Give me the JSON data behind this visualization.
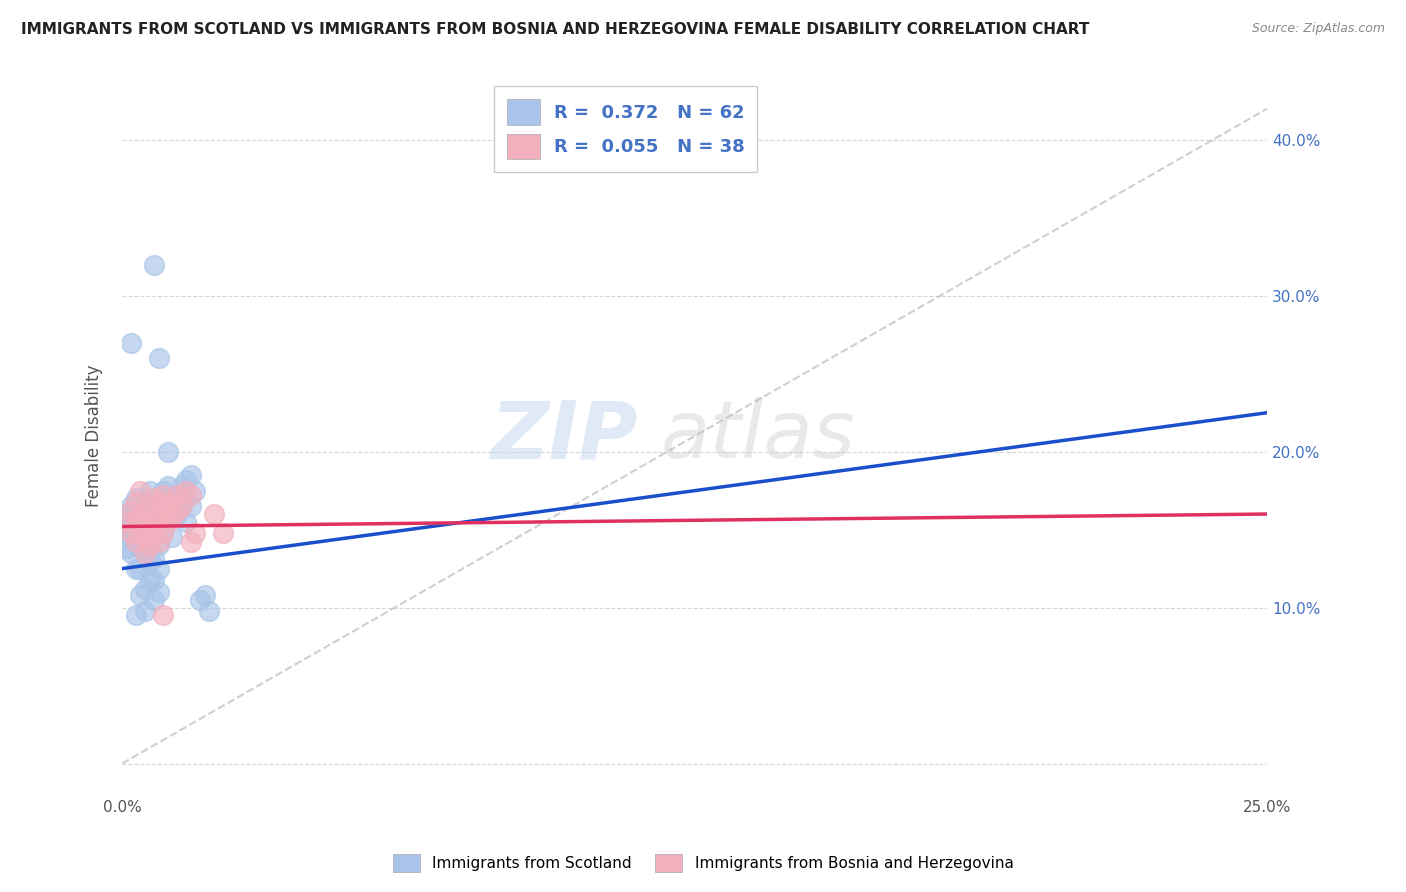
{
  "title": "IMMIGRANTS FROM SCOTLAND VS IMMIGRANTS FROM BOSNIA AND HERZEGOVINA FEMALE DISABILITY CORRELATION CHART",
  "source": "Source: ZipAtlas.com",
  "ylabel": "Female Disability",
  "xlim": [
    0.0,
    0.25
  ],
  "ylim": [
    -0.02,
    0.44
  ],
  "xticks": [
    0.0,
    0.05,
    0.1,
    0.15,
    0.2,
    0.25
  ],
  "yticks": [
    0.0,
    0.1,
    0.2,
    0.3,
    0.4
  ],
  "grid_color": "#cccccc",
  "background_color": "#ffffff",
  "scatter_blue_color": "#a8c4e8",
  "scatter_pink_color": "#f2b0be",
  "line_blue_color": "#1a4fcc",
  "line_pink_color": "#e03060",
  "diag_line_color": "#bbbbbb",
  "R_blue": 0.372,
  "N_blue": 62,
  "R_pink": 0.055,
  "N_pink": 38,
  "legend_label_blue": "Immigrants from Scotland",
  "legend_label_pink": "Immigrants from Bosnia and Herzegovina",
  "watermark": "ZIPatlas",
  "blue_line": [
    0.0,
    0.125,
    0.25,
    0.225
  ],
  "pink_line": [
    0.0,
    0.152,
    0.25,
    0.16
  ],
  "blue_points": [
    [
      0.001,
      0.152
    ],
    [
      0.001,
      0.145
    ],
    [
      0.001,
      0.16
    ],
    [
      0.001,
      0.138
    ],
    [
      0.002,
      0.148
    ],
    [
      0.002,
      0.155
    ],
    [
      0.002,
      0.165
    ],
    [
      0.002,
      0.135
    ],
    [
      0.002,
      0.27
    ],
    [
      0.003,
      0.142
    ],
    [
      0.003,
      0.158
    ],
    [
      0.003,
      0.125
    ],
    [
      0.003,
      0.17
    ],
    [
      0.003,
      0.095
    ],
    [
      0.004,
      0.148
    ],
    [
      0.004,
      0.138
    ],
    [
      0.004,
      0.162
    ],
    [
      0.004,
      0.108
    ],
    [
      0.004,
      0.125
    ],
    [
      0.005,
      0.152
    ],
    [
      0.005,
      0.14
    ],
    [
      0.005,
      0.168
    ],
    [
      0.005,
      0.112
    ],
    [
      0.005,
      0.098
    ],
    [
      0.006,
      0.155
    ],
    [
      0.006,
      0.143
    ],
    [
      0.006,
      0.175
    ],
    [
      0.006,
      0.118
    ],
    [
      0.006,
      0.13
    ],
    [
      0.007,
      0.32
    ],
    [
      0.007,
      0.162
    ],
    [
      0.007,
      0.148
    ],
    [
      0.007,
      0.132
    ],
    [
      0.007,
      0.118
    ],
    [
      0.007,
      0.105
    ],
    [
      0.008,
      0.26
    ],
    [
      0.008,
      0.168
    ],
    [
      0.008,
      0.155
    ],
    [
      0.008,
      0.14
    ],
    [
      0.008,
      0.125
    ],
    [
      0.008,
      0.11
    ],
    [
      0.009,
      0.175
    ],
    [
      0.009,
      0.162
    ],
    [
      0.009,
      0.148
    ],
    [
      0.01,
      0.178
    ],
    [
      0.01,
      0.165
    ],
    [
      0.01,
      0.2
    ],
    [
      0.011,
      0.17
    ],
    [
      0.011,
      0.158
    ],
    [
      0.011,
      0.145
    ],
    [
      0.012,
      0.172
    ],
    [
      0.012,
      0.16
    ],
    [
      0.013,
      0.178
    ],
    [
      0.013,
      0.165
    ],
    [
      0.014,
      0.182
    ],
    [
      0.014,
      0.155
    ],
    [
      0.015,
      0.185
    ],
    [
      0.015,
      0.165
    ],
    [
      0.016,
      0.175
    ],
    [
      0.017,
      0.105
    ],
    [
      0.018,
      0.108
    ],
    [
      0.019,
      0.098
    ]
  ],
  "pink_points": [
    [
      0.001,
      0.155
    ],
    [
      0.002,
      0.148
    ],
    [
      0.002,
      0.162
    ],
    [
      0.003,
      0.155
    ],
    [
      0.003,
      0.142
    ],
    [
      0.003,
      0.168
    ],
    [
      0.004,
      0.158
    ],
    [
      0.004,
      0.148
    ],
    [
      0.004,
      0.175
    ],
    [
      0.005,
      0.162
    ],
    [
      0.005,
      0.145
    ],
    [
      0.005,
      0.135
    ],
    [
      0.006,
      0.165
    ],
    [
      0.006,
      0.152
    ],
    [
      0.006,
      0.14
    ],
    [
      0.007,
      0.17
    ],
    [
      0.007,
      0.158
    ],
    [
      0.007,
      0.148
    ],
    [
      0.008,
      0.168
    ],
    [
      0.008,
      0.155
    ],
    [
      0.008,
      0.142
    ],
    [
      0.009,
      0.172
    ],
    [
      0.009,
      0.16
    ],
    [
      0.009,
      0.148
    ],
    [
      0.01,
      0.165
    ],
    [
      0.01,
      0.155
    ],
    [
      0.011,
      0.168
    ],
    [
      0.011,
      0.158
    ],
    [
      0.012,
      0.172
    ],
    [
      0.012,
      0.162
    ],
    [
      0.013,
      0.165
    ],
    [
      0.014,
      0.175
    ],
    [
      0.015,
      0.172
    ],
    [
      0.015,
      0.142
    ],
    [
      0.02,
      0.16
    ],
    [
      0.009,
      0.095
    ],
    [
      0.022,
      0.148
    ],
    [
      0.016,
      0.148
    ]
  ]
}
